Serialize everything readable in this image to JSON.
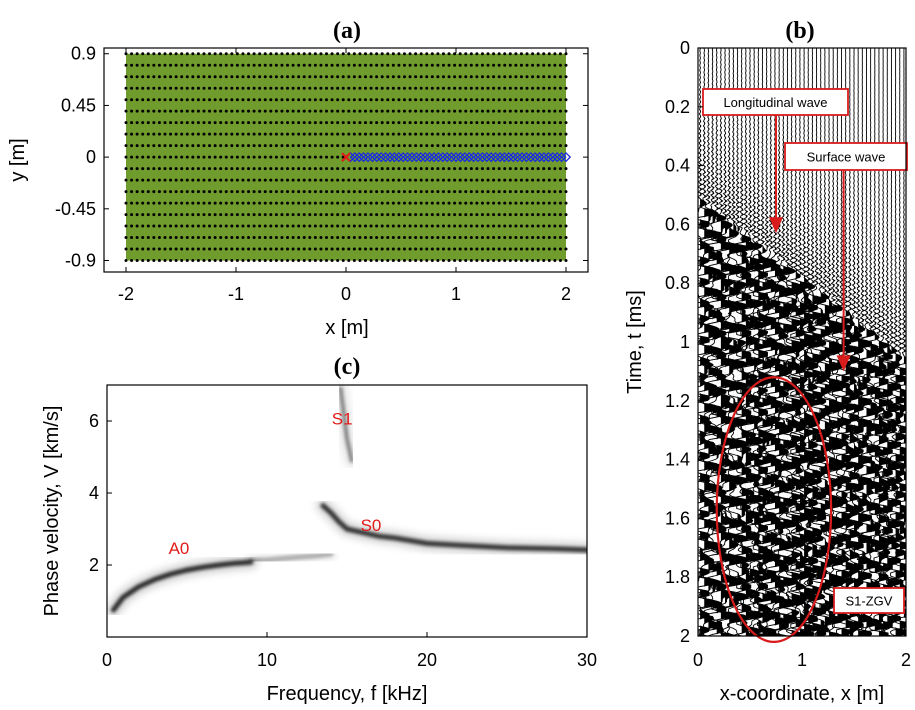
{
  "chart_data": [
    {
      "type": "scatter",
      "title": "(a)",
      "xlabel": "x [m]",
      "ylabel": "y [m]",
      "xlim": [
        -2.2,
        2.2
      ],
      "ylim": [
        -1.0,
        0.95
      ],
      "xticks": [
        "-2",
        "-1",
        "0",
        "1",
        "2"
      ],
      "xtick_values": [
        -2,
        -1,
        0,
        1,
        2
      ],
      "yticks": [
        "0.9",
        "0.45",
        "0",
        "-0.45",
        "-0.9"
      ],
      "ytick_values": [
        0.9,
        0.45,
        0,
        -0.45,
        -0.9
      ],
      "plate": {
        "x": [
          -2,
          2
        ],
        "y": [
          -0.9,
          0.9
        ],
        "color": "#6f9c2c"
      },
      "grid_nodes": {
        "x_range": [
          -2,
          2
        ],
        "x_count": 80,
        "y_range": [
          -0.9,
          0.9
        ],
        "y_step": 0.1,
        "color": "#000000"
      },
      "source": {
        "x": 0,
        "y": 0,
        "marker": "x",
        "color": "#e11b1b"
      },
      "receivers": {
        "x_range": [
          0.04,
          2.0
        ],
        "count": 50,
        "y": 0,
        "marker": "diamond",
        "color": "#1c2ddf"
      }
    },
    {
      "type": "heatmap",
      "title": "(b)",
      "xlabel": "x-coordinate, x [m]",
      "ylabel": "Time, t [ms]",
      "xlim": [
        0,
        2
      ],
      "ylim": [
        0,
        2
      ],
      "y_reversed": true,
      "xticks": [
        "0",
        "1",
        "2"
      ],
      "xtick_values": [
        0,
        1,
        2
      ],
      "yticks": [
        "0",
        "0.2",
        "0.4",
        "0.6",
        "0.8",
        "1",
        "1.2",
        "1.4",
        "1.6",
        "1.8",
        "2"
      ],
      "ytick_values": [
        0,
        0.2,
        0.4,
        0.6,
        0.8,
        1.0,
        1.2,
        1.4,
        1.6,
        1.8,
        2.0
      ],
      "traces": 50,
      "first_arrival": {
        "x": [
          0,
          2
        ],
        "t": [
          0.5,
          1.05
        ]
      },
      "annotations": [
        {
          "text": "Longitudinal wave",
          "arrow_to": {
            "x": 0.75,
            "t": 0.63
          }
        },
        {
          "text": "Surface wave",
          "arrow_to": {
            "x": 1.4,
            "t": 1.1
          }
        },
        {
          "text": "S1-ZGV",
          "ellipse_center": {
            "x": 0.73,
            "t": 1.57
          },
          "ellipse_radius": {
            "x": 0.55,
            "t": 0.45
          }
        }
      ]
    },
    {
      "type": "heatmap",
      "title": "(c)",
      "xlabel": "Frequency, f [kHz]",
      "ylabel": "Phase velocity, V [km/s]",
      "xlim": [
        0,
        30
      ],
      "ylim": [
        0,
        7
      ],
      "xticks": [
        "0",
        "10",
        "20",
        "30"
      ],
      "xtick_values": [
        0,
        10,
        20,
        30
      ],
      "yticks": [
        "2",
        "4",
        "6"
      ],
      "ytick_values": [
        2,
        4,
        6
      ],
      "modes": [
        {
          "name": "A0",
          "label_at": {
            "f": 4.5,
            "v": 2.3
          },
          "f": [
            0.4,
            1,
            2,
            3,
            4,
            5,
            6,
            7,
            8,
            9
          ],
          "v": [
            0.75,
            1.1,
            1.4,
            1.6,
            1.75,
            1.86,
            1.94,
            2.0,
            2.05,
            2.08
          ],
          "intensity": 1.0
        },
        {
          "name": "S0",
          "label_at": {
            "f": 16.5,
            "v": 2.95
          },
          "f": [
            13.5,
            14.0,
            14.5,
            15,
            16,
            17,
            18,
            20,
            22,
            25,
            28,
            30
          ],
          "v": [
            3.65,
            3.45,
            3.2,
            3.0,
            2.9,
            2.8,
            2.75,
            2.6,
            2.55,
            2.48,
            2.45,
            2.42
          ],
          "intensity": 0.95
        },
        {
          "name": "S1",
          "label_at": {
            "f": 14.7,
            "v": 5.9
          },
          "f": [
            14.6,
            14.8,
            15.0,
            15.3
          ],
          "v": [
            6.9,
            6.2,
            5.5,
            4.9
          ],
          "intensity": 0.55
        },
        {
          "name": "",
          "label_at": null,
          "f": [
            9,
            10,
            11,
            12,
            13,
            14
          ],
          "v": [
            2.12,
            2.14,
            2.18,
            2.22,
            2.25,
            2.3
          ],
          "intensity": 0.35
        }
      ]
    }
  ]
}
